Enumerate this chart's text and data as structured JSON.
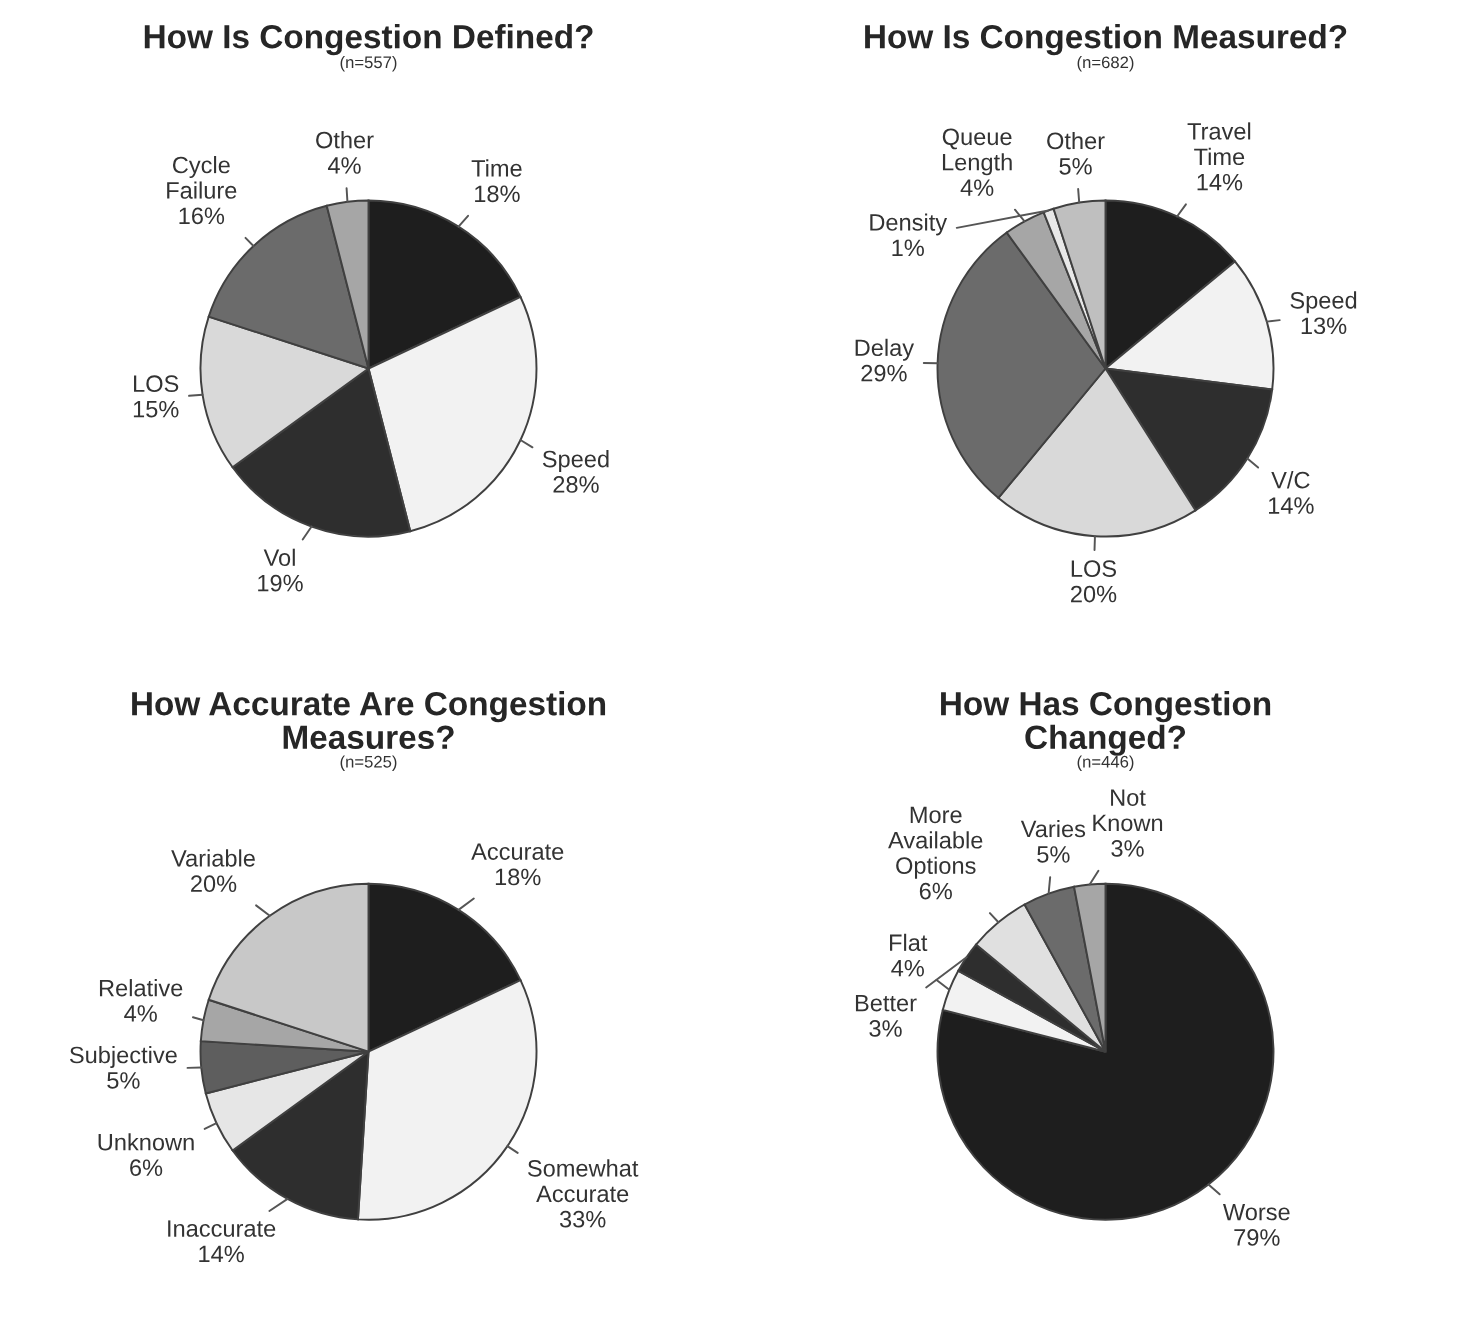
{
  "chart_data": [
    {
      "type": "pie",
      "title": "How Is Congestion Defined?",
      "subtitle": "(n=557)",
      "categories": [
        "Time",
        "Speed",
        "Vol",
        "LOS",
        "Cycle Failure",
        "Other"
      ],
      "values": [
        18,
        28,
        19,
        15,
        16,
        4
      ],
      "value_labels": [
        "18%",
        "28%",
        "19%",
        "15%",
        "16%",
        "4%"
      ],
      "colors": [
        "#1e1e1e",
        "#f2f2f2",
        "#2e2e2e",
        "#d9d9d9",
        "#6b6b6b",
        "#a6a6a6"
      ]
    },
    {
      "type": "pie",
      "title": "How Is Congestion Measured?",
      "subtitle": "(n=682)",
      "categories": [
        "Travel Time",
        "Speed",
        "V/C",
        "LOS",
        "Delay",
        "Queue Length",
        "Density",
        "Other"
      ],
      "values": [
        14,
        13,
        14,
        20,
        29,
        4,
        1,
        5
      ],
      "value_labels": [
        "14%",
        "13%",
        "14%",
        "20%",
        "29%",
        "4%",
        "1%",
        "5%"
      ],
      "colors": [
        "#1e1e1e",
        "#f2f2f2",
        "#2e2e2e",
        "#d9d9d9",
        "#6b6b6b",
        "#a6a6a6",
        "#e8e8e8",
        "#bfbfbf"
      ]
    },
    {
      "type": "pie",
      "title": "How Accurate Are Congestion Measures?",
      "subtitle": "(n=525)",
      "categories": [
        "Accurate",
        "Somewhat Accurate",
        "Inaccurate",
        "Unknown",
        "Subjective",
        "Relative",
        "Variable"
      ],
      "values": [
        18,
        33,
        14,
        6,
        5,
        4,
        20
      ],
      "value_labels": [
        "18%",
        "33%",
        "14%",
        "6%",
        "5%",
        "4%",
        "20%"
      ],
      "colors": [
        "#1e1e1e",
        "#f2f2f2",
        "#2e2e2e",
        "#e6e6e6",
        "#5e5e5e",
        "#a6a6a6",
        "#c8c8c8"
      ]
    },
    {
      "type": "pie",
      "title": "How Has Congestion Changed?",
      "subtitle": "(n=446)",
      "categories": [
        "Worse",
        "Flat",
        "Better",
        "More Available Options",
        "Varies",
        "Not Known"
      ],
      "values": [
        79,
        4,
        3,
        6,
        5,
        3
      ],
      "value_labels": [
        "79%",
        "4%",
        "3%",
        "6%",
        "5%",
        "3%"
      ],
      "colors": [
        "#1e1e1e",
        "#f2f2f2",
        "#2e2e2e",
        "#e0e0e0",
        "#6b6b6b",
        "#a6a6a6"
      ]
    }
  ]
}
